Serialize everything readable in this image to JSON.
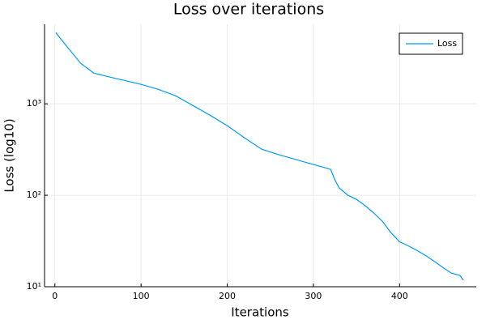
{
  "chart_data": {
    "type": "line",
    "title": "Loss over iterations",
    "x_label": "Iterations",
    "y_label": "Loss (log10)",
    "x": [
      1,
      10,
      20,
      30,
      40,
      45,
      60,
      80,
      100,
      120,
      140,
      160,
      180,
      200,
      220,
      240,
      260,
      280,
      300,
      310,
      320,
      325,
      330,
      340,
      350,
      360,
      370,
      380,
      390,
      400,
      410,
      420,
      430,
      440,
      450,
      460,
      470,
      474
    ],
    "series": [
      {
        "name": "Loss",
        "color": "#009af9",
        "values": [
          6010,
          4710,
          3610,
          2770,
          2355,
          2170,
          2000,
          1805,
          1630,
          1440,
          1225,
          960,
          750,
          577,
          425,
          319,
          277,
          245,
          217,
          204,
          192,
          147,
          120,
          100,
          90,
          77,
          64,
          52,
          39,
          31,
          28,
          25,
          22,
          19,
          16.3,
          14.1,
          13.3,
          11.8
        ]
      }
    ],
    "xlim": [
      -12,
      489
    ],
    "xticks": [
      0,
      100,
      200,
      300,
      400
    ],
    "ylim": [
      10,
      7400
    ],
    "log_y": true,
    "yticks": [
      {
        "value": 10,
        "label": "10¹"
      },
      {
        "value": 100,
        "label": "10²"
      },
      {
        "value": 1000,
        "label": "10³"
      }
    ],
    "grid": true,
    "legend": "top-right"
  }
}
